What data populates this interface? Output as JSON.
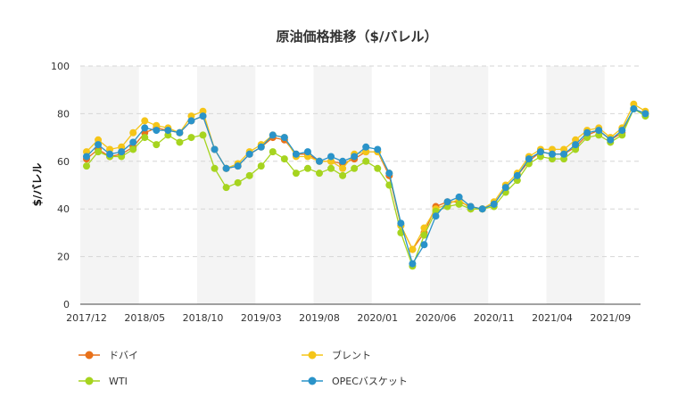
{
  "chart_data": {
    "type": "line",
    "title": "原油価格推移（$/バレル）",
    "xlabel": "",
    "ylabel": "$/バレル",
    "ylim": [
      0,
      100
    ],
    "yticks": [
      0,
      20,
      40,
      60,
      80,
      100
    ],
    "x_tick_labels": [
      {
        "index": 0,
        "label": "2017/12"
      },
      {
        "index": 5,
        "label": "2018/05"
      },
      {
        "index": 10,
        "label": "2018/10"
      },
      {
        "index": 15,
        "label": "2019/03"
      },
      {
        "index": 20,
        "label": "2019/08"
      },
      {
        "index": 25,
        "label": "2020/01"
      },
      {
        "index": 30,
        "label": "2020/06"
      },
      {
        "index": 35,
        "label": "2020/11"
      },
      {
        "index": 40,
        "label": "2021/04"
      },
      {
        "index": 45,
        "label": "2021/09"
      }
    ],
    "grid": true,
    "legend_position": "bottom",
    "series": [
      {
        "name": "ドバイ",
        "color": "#e8711a",
        "values": [
          61,
          65,
          62,
          63,
          66,
          72,
          74,
          73,
          72,
          77,
          79,
          65,
          57,
          58,
          63,
          66,
          70,
          69,
          63,
          63,
          60,
          60,
          59,
          61,
          64,
          64,
          54,
          33,
          23,
          30,
          41,
          43,
          43,
          41,
          40,
          42,
          49,
          54,
          60,
          64,
          63,
          63,
          66,
          71,
          73,
          69,
          72,
          82,
          80
        ]
      },
      {
        "name": "ブレント",
        "color": "#f5c518",
        "values": [
          64,
          69,
          65,
          66,
          72,
          77,
          75,
          74,
          72,
          79,
          81,
          65,
          57,
          59,
          64,
          67,
          71,
          70,
          62,
          62,
          60,
          60,
          57,
          63,
          64,
          64,
          55,
          33,
          23,
          32,
          40,
          42,
          44,
          40,
          40,
          43,
          50,
          55,
          62,
          65,
          65,
          65,
          69,
          73,
          74,
          70,
          74,
          84,
          81
        ]
      },
      {
        "name": "WTI",
        "color": "#a6d41f",
        "values": [
          58,
          64,
          62,
          62,
          65,
          70,
          67,
          71,
          68,
          70,
          71,
          57,
          49,
          51,
          54,
          58,
          64,
          61,
          55,
          57,
          55,
          57,
          54,
          57,
          60,
          57,
          50,
          30,
          16,
          29,
          39,
          41,
          42,
          40,
          40,
          41,
          47,
          52,
          59,
          62,
          61,
          61,
          65,
          70,
          71,
          68,
          71,
          82,
          79
        ]
      },
      {
        "name": "OPECバスケット",
        "color": "#2a93c9",
        "values": [
          62,
          67,
          63,
          64,
          68,
          74,
          73,
          73,
          72,
          77,
          79,
          65,
          57,
          58,
          63,
          66,
          71,
          70,
          63,
          64,
          60,
          62,
          60,
          62,
          66,
          65,
          55,
          34,
          17,
          25,
          37,
          43,
          45,
          41,
          40,
          42,
          49,
          54,
          61,
          64,
          63,
          63,
          67,
          72,
          73,
          69,
          73,
          82,
          80
        ]
      }
    ]
  }
}
